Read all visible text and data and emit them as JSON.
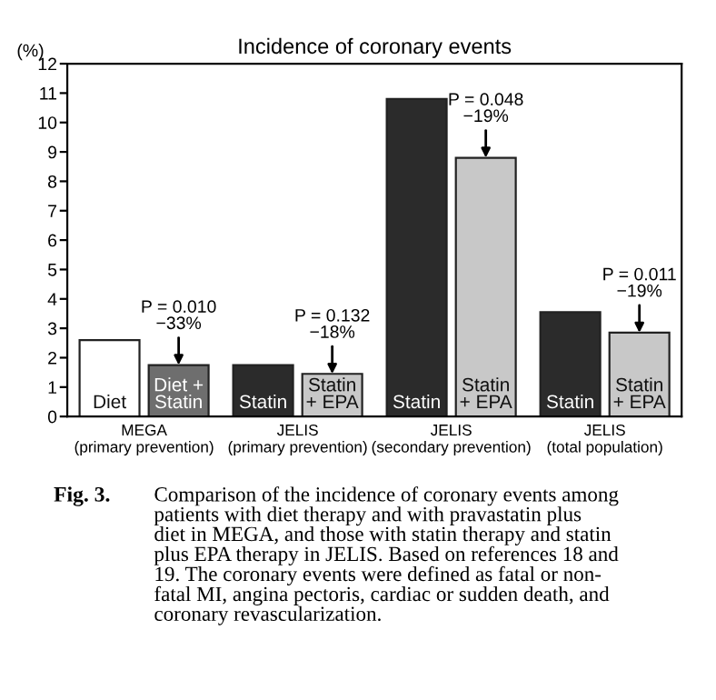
{
  "chart_data": {
    "type": "bar",
    "title": "Incidence of coronary events",
    "ylabel": "(%)",
    "categories": [
      "MEGA\n(primary prevention)",
      "JELIS\n(primary prevention)",
      "JELIS\n(secondary prevention)",
      "JELIS\n(total population)"
    ],
    "series": [
      {
        "colors": [
          "#ffffff",
          "#2b2b2b",
          "#2b2b2b",
          "#2b2b2b"
        ],
        "values": [
          2.6,
          1.75,
          10.8,
          3.55
        ],
        "value_labels": [
          "Diet",
          "Statin",
          "Statin",
          "Statin"
        ]
      },
      {
        "colors": [
          "#6e6e6e",
          "#c8c8c8",
          "#c8c8c8",
          "#c8c8c8"
        ],
        "values": [
          1.75,
          1.45,
          8.8,
          2.85
        ],
        "value_labels": [
          "Diet +\nStatin",
          "Statin\n+ EPA",
          "Statin\n+ EPA",
          "Statin\n+ EPA"
        ]
      }
    ],
    "ylim": [
      0,
      12
    ],
    "yticks": [
      0,
      1,
      2,
      3,
      4,
      5,
      6,
      7,
      8,
      9,
      10,
      11,
      12
    ],
    "grid": false,
    "legend": false,
    "annotations": [
      {
        "text": "P = 0.010\n−33%",
        "x": "MEGA\n(primary prevention)",
        "y": 1.75
      },
      {
        "text": "P = 0.132\n−18%",
        "x": "JELIS\n(primary prevention)",
        "y": 1.45
      },
      {
        "text": "P = 0.048\n−19%",
        "x": "JELIS\n(secondary prevention)",
        "y": 8.8
      },
      {
        "text": "P = 0.011\n−19%",
        "x": "JELIS\n(total population)",
        "y": 2.85
      },
      "Fig. 3.",
      "Comparison of the incidence of coronary events among\npatients with diet therapy and with pravastatin plus\ndiet in MEGA, and those with statin therapy and statin\nplus EPA therapy in JELIS. Based on references 18 and\n19. The coronary events were defined as fatal or non-\nfatal MI, angina pectoris, cardiac or sudden death, and\ncoronary revascularization."
    ]
  }
}
